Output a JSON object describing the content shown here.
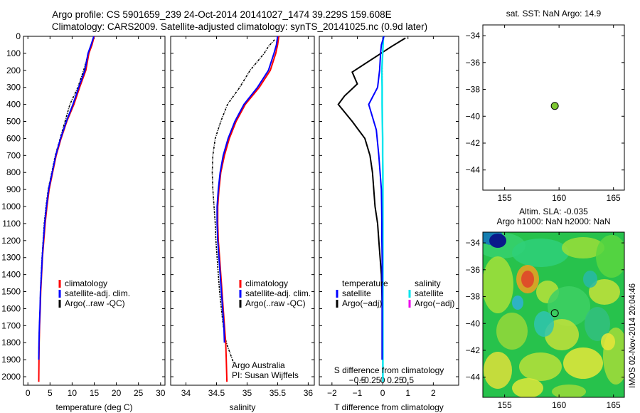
{
  "header": {
    "line1": "Argo profile: CS 5901659_239 24-Oct-2014 20141027_1474 39.229S 159.608E",
    "line2": "Climatology: CARS2009. Satellite-adjusted climatology: synTS_20141025.nc (0.9d later)"
  },
  "side_stamp": "IMOS 02-Nov-2014 20:04:46",
  "colors": {
    "climatology": "#ff0000",
    "satellite": "#0000ff",
    "argo": "#000000",
    "satellite_salinity": "#00e5ee",
    "argo_salinity": "#ee00ee",
    "marker_fill": "#7ec832"
  },
  "chart_data": [
    {
      "type": "line",
      "xlabel": "temperature (deg C)",
      "ylabel": "",
      "xlim": [
        -1,
        31
      ],
      "ylim": [
        2050,
        0
      ],
      "xticks": [
        0,
        5,
        10,
        15,
        20,
        25,
        30
      ],
      "yticks": [
        0,
        100,
        200,
        300,
        400,
        500,
        600,
        700,
        800,
        900,
        1000,
        1100,
        1200,
        1300,
        1400,
        1500,
        1600,
        1700,
        1800,
        1900,
        2000
      ],
      "legend": [
        "climatology",
        "satellite-adj. clim.",
        "Argo(..raw -QC)"
      ],
      "legend_position": "lower-left",
      "series": [
        {
          "name": "climatology",
          "color": "#ff0000",
          "x": [
            15.0,
            14.5,
            13.8,
            13.1,
            11.7,
            10.4,
            8.8,
            7.5,
            6.4,
            5.6,
            4.8,
            4.3,
            3.9,
            3.6,
            3.3,
            3.1,
            2.9,
            2.8,
            2.65,
            2.55,
            2.5,
            2.45
          ],
          "y": [
            0,
            50,
            100,
            200,
            300,
            400,
            500,
            600,
            700,
            800,
            900,
            1000,
            1100,
            1200,
            1300,
            1400,
            1500,
            1600,
            1700,
            1800,
            1900,
            2030
          ]
        },
        {
          "name": "satellite-adj. clim.",
          "color": "#0000ff",
          "x": [
            14.9,
            14.3,
            13.6,
            12.9,
            11.5,
            10.2,
            8.7,
            7.4,
            6.3,
            5.5,
            4.7,
            4.2,
            3.8,
            3.5,
            3.25,
            3.05,
            2.85,
            2.75,
            2.6,
            2.5,
            2.45
          ],
          "y": [
            0,
            50,
            100,
            200,
            300,
            400,
            500,
            600,
            700,
            800,
            900,
            1000,
            1100,
            1200,
            1300,
            1400,
            1500,
            1600,
            1700,
            1800,
            1900
          ]
        },
        {
          "name": "Argo(..raw -QC)",
          "color": "#000000",
          "x": [
            14.7,
            14.3,
            13.7,
            12.6,
            11.3,
            9.5,
            8.4,
            7.3,
            6.2,
            5.4,
            4.6,
            4.1,
            3.7,
            3.45,
            3.2,
            3.0,
            2.85,
            2.75,
            2.6,
            2.5,
            2.45
          ],
          "y": [
            20,
            60,
            100,
            200,
            300,
            400,
            500,
            600,
            700,
            800,
            900,
            1000,
            1100,
            1200,
            1300,
            1400,
            1500,
            1600,
            1700,
            1800,
            1900
          ]
        }
      ]
    },
    {
      "type": "line",
      "xlabel": "salinity",
      "ylabel": "",
      "xlim": [
        33.75,
        36.1
      ],
      "ylim": [
        2050,
        0
      ],
      "xticks": [
        34,
        34.5,
        35,
        35.5,
        36
      ],
      "xtick_labels": [
        "34",
        "34.5",
        "35",
        "35.5",
        "36"
      ],
      "legend": [
        "climatology",
        "satellite-adj. clim.",
        "Argo(..raw -QC)"
      ],
      "legend_position": "lower-right",
      "annotation": [
        "Argo Australia",
        "PI: Susan Wijffels"
      ],
      "series": [
        {
          "name": "climatology",
          "color": "#ff0000",
          "x": [
            35.52,
            35.5,
            35.47,
            35.38,
            35.2,
            34.97,
            34.82,
            34.71,
            34.63,
            34.57,
            34.54,
            34.52,
            34.52,
            34.53,
            34.55,
            34.57,
            34.59,
            34.61,
            34.63,
            34.65,
            34.66,
            34.67
          ],
          "y": [
            0,
            50,
            100,
            200,
            300,
            400,
            500,
            600,
            700,
            800,
            900,
            1000,
            1100,
            1200,
            1300,
            1400,
            1500,
            1600,
            1700,
            1800,
            1900,
            2030
          ]
        },
        {
          "name": "satellite-adj. clim.",
          "color": "#0000ff",
          "x": [
            35.5,
            35.48,
            35.44,
            35.35,
            35.17,
            34.95,
            34.8,
            34.69,
            34.61,
            34.56,
            34.53,
            34.51,
            34.51,
            34.52,
            34.54,
            34.56,
            34.58,
            34.6,
            34.62,
            34.63
          ],
          "y": [
            0,
            50,
            100,
            200,
            300,
            400,
            500,
            600,
            700,
            800,
            900,
            1000,
            1100,
            1200,
            1300,
            1400,
            1500,
            1600,
            1700,
            1800
          ]
        },
        {
          "name": "Argo(..raw -QC)",
          "color": "#000000",
          "x": [
            35.45,
            35.35,
            35.28,
            35.05,
            34.88,
            34.68,
            34.57,
            34.48,
            34.44,
            34.43,
            34.44,
            34.46,
            34.48,
            34.49,
            34.51,
            34.53,
            34.55,
            34.58,
            34.61,
            34.66,
            34.78
          ],
          "y": [
            20,
            60,
            100,
            200,
            300,
            400,
            500,
            600,
            700,
            800,
            900,
            1000,
            1100,
            1200,
            1300,
            1400,
            1500,
            1600,
            1700,
            1800,
            1920
          ]
        }
      ]
    },
    {
      "type": "line",
      "xlabel": "T difference from climatology",
      "title": "S difference from climatology",
      "xlim": [
        -2.5,
        3
      ],
      "ylim": [
        2050,
        0
      ],
      "xticks": [
        -2,
        -1,
        0,
        1,
        2
      ],
      "xtick_labels": [
        "−2",
        "−1",
        "0",
        "1",
        "2"
      ],
      "sticks": [
        -0.5,
        -0.25,
        0,
        0.25,
        0.5
      ],
      "stick_labels": [
        "−0.5",
        "−0.25",
        "0",
        "0.25",
        "0.5"
      ],
      "legend_temperature": {
        "title": "temperature",
        "items": [
          "satellite",
          "Argo(−adj)"
        ]
      },
      "legend_salinity": {
        "title": "salinity",
        "items": [
          "satellite",
          "Argo(−adj)"
        ]
      },
      "series": [
        {
          "name": "satellite",
          "color": "#0000ff",
          "x": [
            0.05,
            -0.05,
            -0.08,
            -0.12,
            -0.2,
            -0.55,
            -0.45,
            -0.25,
            -0.15,
            -0.1,
            -0.05,
            -0.04,
            -0.03,
            -0.03,
            -0.02,
            -0.02,
            -0.02,
            -0.02,
            -0.02,
            -0.02
          ],
          "y": [
            0,
            50,
            100,
            200,
            300,
            400,
            450,
            550,
            700,
            800,
            900,
            1000,
            1100,
            1200,
            1300,
            1400,
            1500,
            1600,
            1700,
            1900
          ]
        },
        {
          "name": "Argo(−adj)",
          "color": "#000000",
          "x": [
            0.9,
            0.35,
            -1.2,
            -1.0,
            -1.5,
            -1.75,
            -1.2,
            -0.7,
            -0.5,
            -0.4,
            -0.35,
            -0.3,
            -0.2,
            -0.15,
            -0.1,
            -0.05,
            -0.03,
            -0.02,
            -0.02
          ],
          "y": [
            10,
            60,
            210,
            280,
            350,
            400,
            500,
            600,
            700,
            800,
            900,
            1000,
            1100,
            1200,
            1300,
            1400,
            1500,
            1600,
            1900
          ]
        },
        {
          "name": "satellite salinity",
          "color": "#00e5ee",
          "x": [
            0.03,
            0.0,
            -0.03,
            -0.02,
            -0.02,
            -0.01,
            0.0,
            0.0,
            0.01,
            0.01,
            0.01,
            0.01,
            0.01,
            0.01,
            0.01,
            0.01,
            0.01,
            0.01,
            0.01,
            0.01
          ],
          "y": [
            0,
            100,
            200,
            300,
            400,
            500,
            600,
            700,
            800,
            900,
            1000,
            1100,
            1200,
            1300,
            1400,
            1500,
            1600,
            1700,
            1900,
            2030
          ]
        }
      ]
    },
    {
      "type": "scatter",
      "title": "sat. SST: NaN Argo: 14.9",
      "xlim": [
        153,
        166
      ],
      "ylim": [
        -45.5,
        -33.2
      ],
      "xticks": [
        155,
        160,
        165
      ],
      "yticks": [
        -34,
        -36,
        -38,
        -40,
        -42,
        -44
      ],
      "ytick_labels": [
        "−34",
        "−36",
        "−38",
        "−40",
        "−42",
        "−44"
      ],
      "points": [
        {
          "x": 159.608,
          "y": -39.229
        }
      ]
    },
    {
      "type": "heatmap",
      "title": [
        "Altim. SLA: -0.035",
        "Argo h1000: NaN h2000: NaN"
      ],
      "xlim": [
        153,
        166
      ],
      "ylim": [
        -45.5,
        -33.2
      ],
      "xticks": [
        155,
        160,
        165
      ],
      "yticks": [
        -34,
        -36,
        -38,
        -40,
        -42,
        -44
      ],
      "ytick_labels": [
        "−34",
        "−36",
        "−38",
        "−40",
        "−42",
        "−44"
      ],
      "points": [
        {
          "x": 159.608,
          "y": -39.229
        }
      ]
    }
  ]
}
